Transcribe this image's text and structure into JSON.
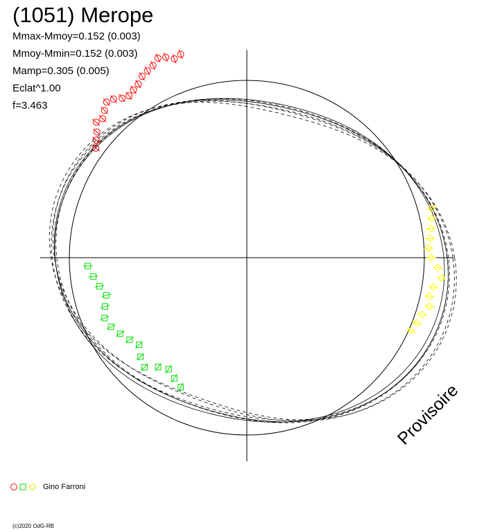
{
  "title": "(1051) Merope",
  "stats": [
    "Mmax-Mmoy=0.152 (0.003)",
    "Mmoy-Mmin=0.152 (0.003)",
    "Mamp=0.305 (0.005)",
    "Eclat^1.00",
    "f=3.463"
  ],
  "watermark": "Provisoire",
  "legend": {
    "observer": "Gino Farroni"
  },
  "copyright": "(c)2020 OdG-RB",
  "colors": {
    "red": "#ff0000",
    "green": "#00dd00",
    "yellow": "#ffff00",
    "axes": "#000000"
  },
  "chart_data": {
    "type": "scatter",
    "description_type": "polar phase diagram of rotational lightcurve",
    "period_scale": "f=3.463",
    "series": [
      {
        "marker": "circle",
        "color": "#ff0000",
        "points": [
          [
            108,
            0.16
          ],
          [
            110,
            0.15
          ],
          [
            112,
            0.17
          ],
          [
            114,
            0.18
          ],
          [
            116,
            0.16
          ],
          [
            118,
            0.15
          ],
          [
            120,
            0.14
          ],
          [
            122,
            0.12
          ],
          [
            124,
            0.11
          ],
          [
            126,
            0.1
          ],
          [
            128,
            0.11
          ],
          [
            130,
            0.13
          ],
          [
            132,
            0.14
          ],
          [
            134,
            0.12
          ],
          [
            136,
            0.1
          ],
          [
            138,
            0.11
          ],
          [
            140,
            0.08
          ],
          [
            142,
            0.06
          ],
          [
            144,
            0.04
          ]
        ]
      },
      {
        "marker": "square",
        "color": "#00dd00",
        "points": [
          [
            183,
            -0.08
          ],
          [
            187,
            -0.1
          ],
          [
            191,
            -0.12
          ],
          [
            195,
            -0.14
          ],
          [
            199,
            -0.12
          ],
          [
            203,
            -0.1
          ],
          [
            207,
            -0.11
          ],
          [
            211,
            -0.13
          ],
          [
            215,
            -0.15
          ],
          [
            219,
            -0.17
          ],
          [
            223,
            -0.14
          ],
          [
            227,
            -0.12
          ],
          [
            231,
            -0.16
          ],
          [
            235,
            -0.18
          ],
          [
            239,
            -0.16
          ],
          [
            243,
            -0.14
          ]
        ]
      },
      {
        "marker": "diamond",
        "color": "#ffff00",
        "points": [
          [
            15,
            0.06
          ],
          [
            12,
            0.05
          ],
          [
            9,
            0.04
          ],
          [
            6,
            0.03
          ],
          [
            3,
            0.02
          ],
          [
            0,
            0.03
          ],
          [
            -3,
            0.06
          ],
          [
            -6,
            0.08
          ],
          [
            -9,
            0.05
          ],
          [
            -12,
            0.04
          ],
          [
            -15,
            0.05
          ],
          [
            -18,
            0.03
          ],
          [
            -21,
            0.02
          ],
          [
            -24,
            0.01
          ]
        ]
      }
    ]
  }
}
